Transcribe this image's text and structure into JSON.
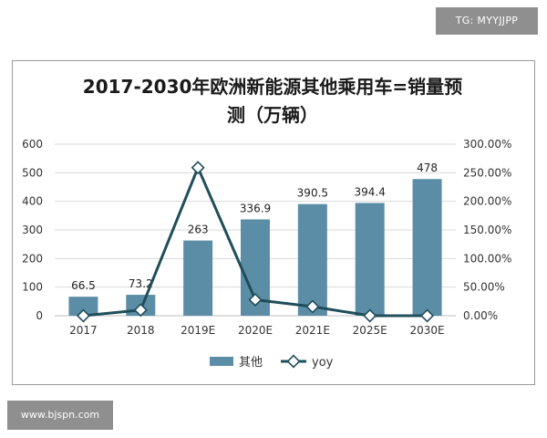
{
  "watermark_top": "TG: MYYJJPP",
  "watermark_bottom": "www.bjspn.com",
  "chart_data": {
    "type": "bar",
    "title_line1": "2017-2030年欧洲新能源其他乘用车=销量预",
    "title_line2": "测（万辆）",
    "categories": [
      "2017",
      "2018",
      "2019E",
      "2020E",
      "2021E",
      "2025E",
      "2030E"
    ],
    "series": [
      {
        "name": "其他",
        "kind": "bar",
        "axis": "left",
        "values": [
          66.5,
          73.2,
          263,
          336.9,
          390.5,
          394.4,
          478
        ],
        "labels": [
          "66.5",
          "73.2",
          "263",
          "336.9",
          "390.5",
          "394.4",
          "478"
        ],
        "color": "#5b8ea6"
      },
      {
        "name": "yoy",
        "kind": "line",
        "axis": "right",
        "values": [
          0,
          10,
          259,
          28,
          16,
          0,
          0
        ],
        "color": "#1f4e5a"
      }
    ],
    "y_left": {
      "lim": [
        0,
        600
      ],
      "ticks": [
        "0",
        "100",
        "200",
        "300",
        "400",
        "500",
        "600"
      ]
    },
    "y_right": {
      "lim": [
        0,
        300
      ],
      "ticks": [
        "0.00%",
        "50.00%",
        "100.00%",
        "150.00%",
        "200.00%",
        "250.00%",
        "300.00%"
      ]
    },
    "grid": true,
    "legend_position": "bottom"
  }
}
